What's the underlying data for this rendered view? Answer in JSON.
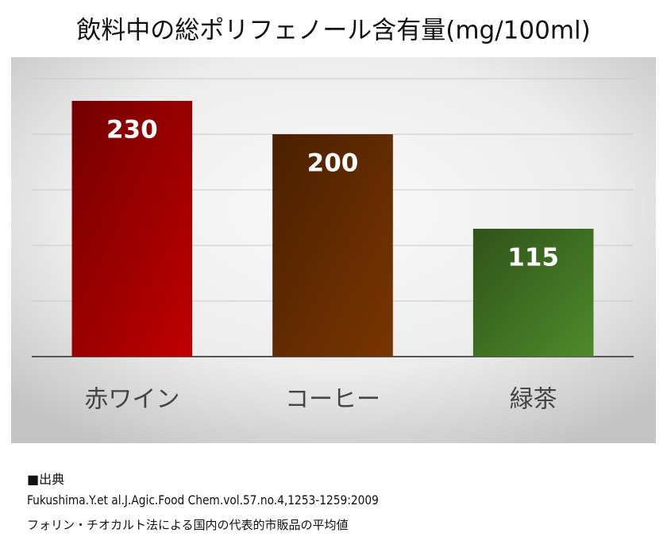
{
  "chart_data": {
    "type": "bar",
    "title": "飲料中の総ポリフェノール含有量(mg/100ml)",
    "categories": [
      "赤ワイン",
      "コーヒー",
      "緑茶"
    ],
    "values": [
      230,
      200,
      115
    ],
    "colors": [
      "#c00000",
      "#7a3500",
      "#4e8a2a"
    ],
    "ylim": [
      0,
      250
    ],
    "yticks": [
      0,
      50,
      100,
      150,
      200,
      250
    ],
    "grid": true
  },
  "source": {
    "heading": "■出典",
    "citation": "Fukushima.Y.et al.J.Agic.Food Chem.vol.57.no.4,1253-1259:2009",
    "note": "フォリン・チオカルト法による国内の代表的市販品の平均値"
  }
}
